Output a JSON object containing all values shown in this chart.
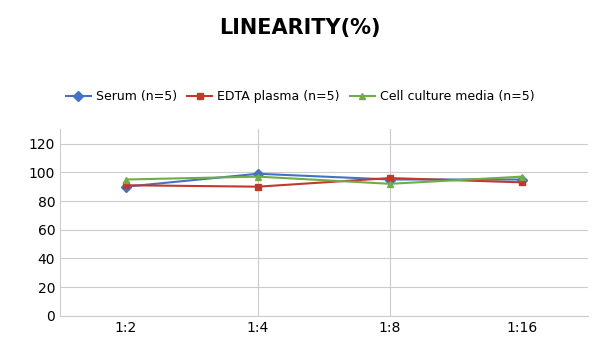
{
  "title": "LINEARITY(%)",
  "x_labels": [
    "1:2",
    "1:4",
    "1:8",
    "1:16"
  ],
  "x_positions": [
    0,
    1,
    2,
    3
  ],
  "series": [
    {
      "label": "Serum (n=5)",
      "color": "#4472C4",
      "marker": "D",
      "markersize": 5,
      "values": [
        90,
        99,
        95,
        95
      ]
    },
    {
      "label": "EDTA plasma (n=5)",
      "color": "#C0392B",
      "marker": "s",
      "markersize": 5,
      "values": [
        91,
        90,
        96,
        93
      ]
    },
    {
      "label": "Cell culture media (n=5)",
      "color": "#70AD47",
      "marker": "^",
      "markersize": 5,
      "values": [
        95,
        97,
        92,
        97
      ]
    }
  ],
  "ylim": [
    0,
    130
  ],
  "yticks": [
    0,
    20,
    40,
    60,
    80,
    100,
    120
  ],
  "xlim": [
    -0.5,
    3.5
  ],
  "background_color": "#FFFFFF",
  "grid_color": "#CCCCCC",
  "title_fontsize": 15,
  "legend_fontsize": 9,
  "tick_fontsize": 10,
  "linewidth": 1.5
}
